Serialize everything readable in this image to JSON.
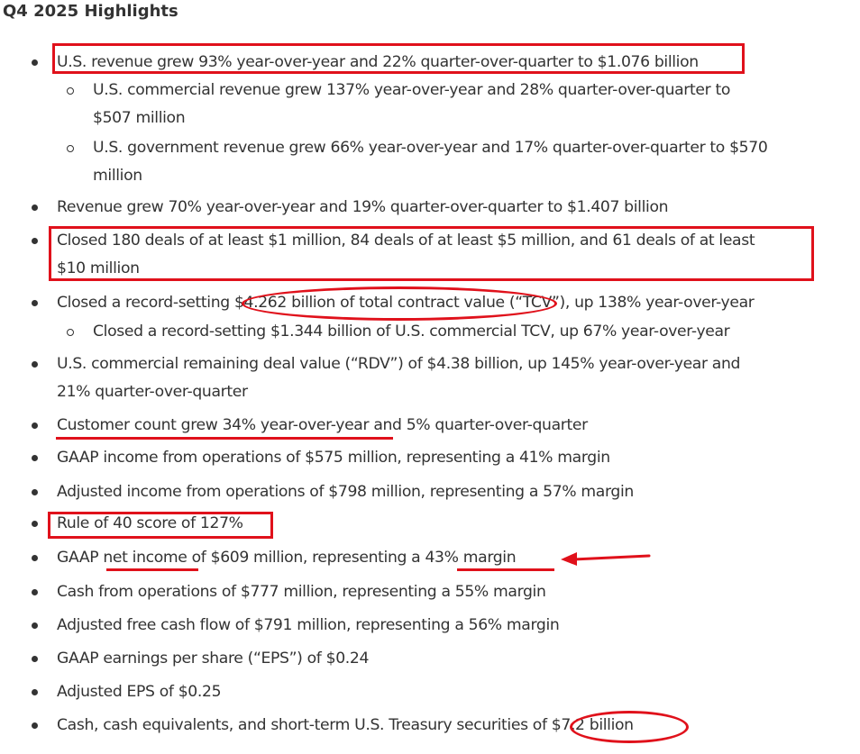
{
  "title": "Q4 2025 Highlights",
  "bullets": [
    {
      "kind": "main",
      "lines": [
        "U.S. revenue grew 93% year-over-year and 22% quarter-over-quarter to $1.076 billion"
      ]
    },
    {
      "kind": "sub",
      "lines": [
        "U.S. commercial revenue grew 137% year-over-year and 28% quarter-over-quarter to",
        "$507 million"
      ]
    },
    {
      "kind": "sub",
      "lines": [
        "U.S. government revenue grew 66% year-over-year and 17% quarter-over-quarter to $570",
        "million"
      ]
    },
    {
      "kind": "main",
      "lines": [
        "Revenue grew 70% year-over-year and 19% quarter-over-quarter to $1.407 billion"
      ]
    },
    {
      "kind": "main",
      "lines": [
        "Closed 180 deals of at least $1 million, 84 deals of at least $5 million, and 61 deals of at least",
        "$10 million"
      ]
    },
    {
      "kind": "main",
      "lines": [
        "Closed a record-setting $4.262 billion of total contract value (“TCV”), up 138% year-over-year"
      ]
    },
    {
      "kind": "sub",
      "lines": [
        "Closed a record-setting $1.344 billion of U.S. commercial TCV, up 67% year-over-year"
      ]
    },
    {
      "kind": "main",
      "lines": [
        "U.S. commercial remaining deal value (“RDV”) of $4.38 billion, up 145% year-over-year and",
        "21% quarter-over-quarter"
      ]
    },
    {
      "kind": "main",
      "lines": [
        "Customer count grew 34% year-over-year and 5% quarter-over-quarter"
      ]
    },
    {
      "kind": "main",
      "lines": [
        "GAAP income from operations of $575 million, representing a 41% margin"
      ]
    },
    {
      "kind": "main",
      "lines": [
        "Adjusted income from operations of $798 million, representing a 57% margin"
      ]
    },
    {
      "kind": "main",
      "lines": [
        "Rule of 40 score of 127%"
      ]
    },
    {
      "kind": "main",
      "lines": [
        "GAAP net income of $609 million, representing a 43% margin"
      ]
    },
    {
      "kind": "main",
      "lines": [
        "Cash from operations of $777 million, representing a 55% margin"
      ]
    },
    {
      "kind": "main",
      "lines": [
        "Adjusted free cash flow of $791 million, representing a 56% margin"
      ]
    },
    {
      "kind": "main",
      "lines": [
        "GAAP earnings per share (“EPS”) of $0.24"
      ]
    },
    {
      "kind": "main",
      "lines": [
        "Adjusted EPS of $0.25"
      ]
    },
    {
      "kind": "main",
      "lines": [
        "Cash, cash equivalents, and short-term U.S. Treasury securities of $7.2 billion"
      ]
    }
  ],
  "colors": {
    "text": "#333333",
    "annotation": "#e0111b",
    "background": "#ffffff"
  }
}
